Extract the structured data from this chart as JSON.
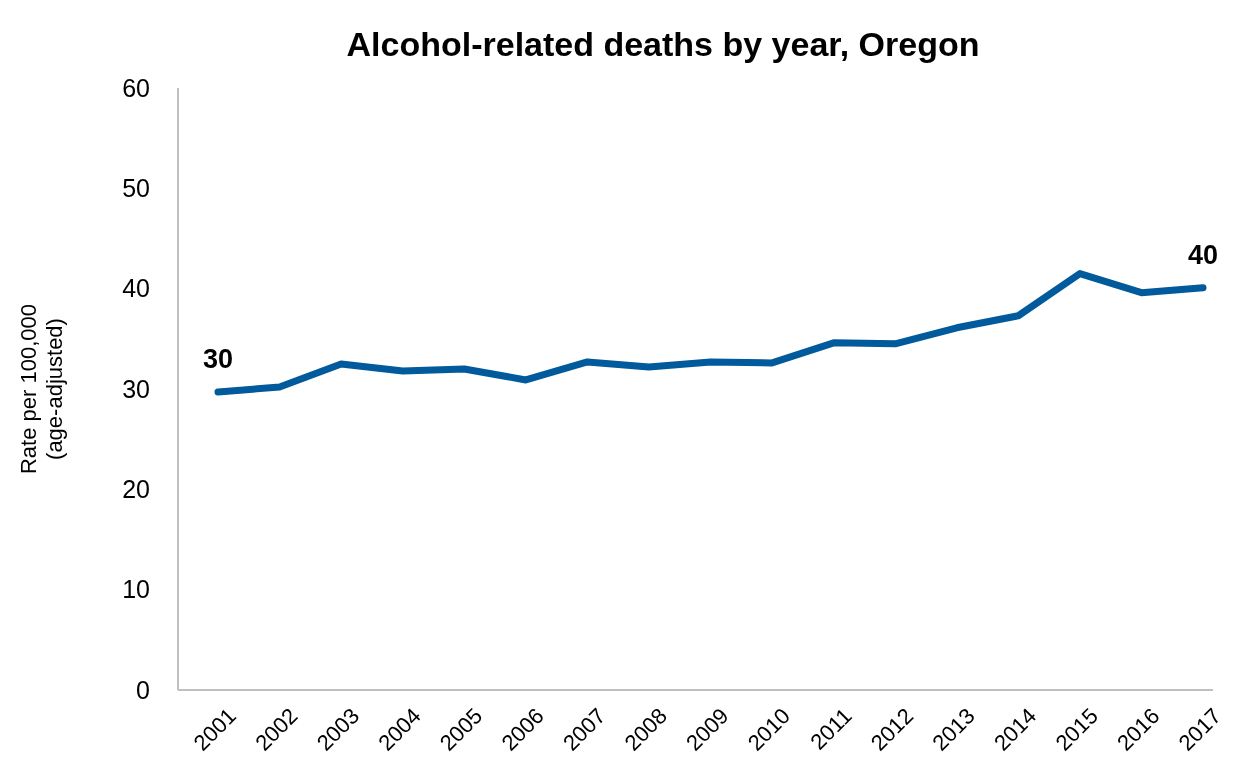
{
  "chart_data": {
    "type": "line",
    "title": "Alcohol-related deaths by year, Oregon",
    "ylabel": "Rate per 100,000\n(age-adjusted)",
    "categories": [
      "2001",
      "2002",
      "2003",
      "2004",
      "2005",
      "2006",
      "2007",
      "2008",
      "2009",
      "2010",
      "2011",
      "2012",
      "2013",
      "2014",
      "2015",
      "2016",
      "2017"
    ],
    "series": [
      {
        "color": "#005a9c",
        "values": [
          29.7,
          30.2,
          32.5,
          31.8,
          32.0,
          30.9,
          32.7,
          32.2,
          32.7,
          32.6,
          34.6,
          34.5,
          36.1,
          37.3,
          41.5,
          39.6,
          40.1
        ],
        "value_labels": [
          "30",
          null,
          null,
          null,
          null,
          null,
          null,
          null,
          null,
          null,
          null,
          null,
          null,
          null,
          null,
          null,
          "40"
        ]
      }
    ],
    "ylim": [
      0,
      60
    ],
    "yticks": [
      0,
      10,
      20,
      30,
      40,
      50,
      60
    ],
    "grid": false,
    "marker": "none",
    "line_style": "solid"
  }
}
